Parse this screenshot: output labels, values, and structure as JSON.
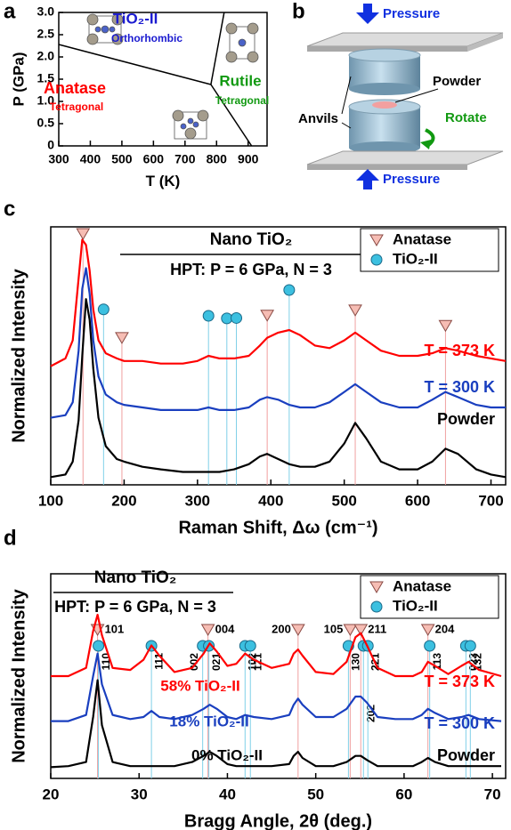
{
  "panel_labels": [
    "a",
    "b",
    "c",
    "d"
  ],
  "chart_data": [
    {
      "type": "phase",
      "xlabel": "T (K)",
      "ylabel": "P (GPa)",
      "xlim": [
        300,
        960
      ],
      "xticks": [
        300,
        400,
        500,
        600,
        700,
        800,
        900
      ],
      "ylim": [
        0,
        3
      ],
      "yticks": [
        0,
        0.5,
        {
          "value": 1,
          "label": "1.0"
        },
        1.5,
        {
          "value": 2,
          "label": "2.0"
        },
        2.5,
        {
          "value": 3,
          "label": "3.0"
        }
      ],
      "color": "#000000",
      "series": [
        {
          "x": [
            300,
            782
          ],
          "values": [
            2.28,
            1.38
          ]
        },
        {
          "x": [
            782,
            824
          ],
          "values": [
            1.38,
            3.0
          ]
        },
        {
          "x": [
            782,
            911
          ],
          "values": [
            1.38,
            0
          ]
        }
      ],
      "annotations": [
        {
          "text": "TiO₂-II",
          "color": "#1a1ad0"
        },
        {
          "text": "Orthorhombic",
          "color": "#1a1ad0"
        },
        {
          "text": "Anatase",
          "color": "#ff0000"
        },
        {
          "text": "Tetragonal",
          "color": "#ff0000"
        },
        {
          "text": "Rutile",
          "color": "#119911"
        },
        {
          "text": "Tetragonal",
          "color": "#119911"
        }
      ]
    },
    {
      "type": "line",
      "title": "Nano TiO₂",
      "subtitle": "HPT: P = 6 GPa, N = 3",
      "xlabel": "Raman Shift, Δω (cm⁻¹)",
      "ylabel": "Normalized Intensity",
      "xlim": [
        100,
        720
      ],
      "xticks": [
        100,
        200,
        300,
        400,
        500,
        600,
        700
      ],
      "ylim": [
        0,
        10
      ],
      "legend": "upper right",
      "x": [
        100,
        120,
        130,
        138,
        143,
        148,
        153,
        158,
        165,
        175,
        190,
        200,
        225,
        250,
        280,
        300,
        315,
        330,
        350,
        370,
        385,
        395,
        410,
        425,
        440,
        460,
        480,
        500,
        515,
        530,
        550,
        575,
        600,
        620,
        638,
        655,
        680,
        700,
        720
      ],
      "series": [
        {
          "name": "T = 373 K",
          "color": "#ff0000",
          "values": [
            4.6,
            4.9,
            5.6,
            8.0,
            9.5,
            9.3,
            8.3,
            6.8,
            5.6,
            5.1,
            4.9,
            4.8,
            4.8,
            4.7,
            4.7,
            4.8,
            5.0,
            4.9,
            4.9,
            5.0,
            5.4,
            5.7,
            5.9,
            6.0,
            5.8,
            5.4,
            5.3,
            5.6,
            5.9,
            5.6,
            5.2,
            5.0,
            5.0,
            5.1,
            5.3,
            5.2,
            5.0,
            4.9,
            4.8
          ]
        },
        {
          "name": "T = 300 K",
          "color": "#1a3fbf",
          "values": [
            2.6,
            2.7,
            3.2,
            5.2,
            7.6,
            8.4,
            7.4,
            5.6,
            4.2,
            3.5,
            3.2,
            3.1,
            3.0,
            2.9,
            2.9,
            2.9,
            3.0,
            2.9,
            2.9,
            3.0,
            3.3,
            3.4,
            3.3,
            3.1,
            3.0,
            3.0,
            3.2,
            3.6,
            3.9,
            3.6,
            3.2,
            3.0,
            3.0,
            3.3,
            3.6,
            3.4,
            3.1,
            3.0,
            3.0
          ]
        },
        {
          "name": "Powder",
          "color": "#000000",
          "values": [
            0.3,
            0.4,
            0.9,
            2.5,
            5.0,
            7.2,
            6.4,
            4.5,
            2.6,
            1.5,
            1.0,
            0.9,
            0.7,
            0.6,
            0.5,
            0.5,
            0.5,
            0.5,
            0.6,
            0.8,
            1.1,
            1.2,
            1.0,
            0.8,
            0.7,
            0.7,
            0.9,
            1.6,
            2.4,
            1.8,
            0.9,
            0.6,
            0.6,
            0.9,
            1.4,
            1.2,
            0.6,
            0.4,
            0.3
          ]
        }
      ],
      "markers": [
        {
          "name": "Anatase",
          "shape": "triangle",
          "color": "#f6bdb4",
          "line_color": "#f0a0a0",
          "x": [
            144,
            197,
            395,
            515,
            638
          ]
        },
        {
          "name": "TiO₂-II",
          "shape": "circle",
          "color": "#3cc0e0",
          "line_color": "#80d0e8",
          "x": [
            172,
            315,
            340,
            353,
            425
          ]
        }
      ]
    },
    {
      "type": "line",
      "title": "Nano TiO₂",
      "subtitle": "HPT: P = 6 GPa, N = 3",
      "xlabel": "Bragg Angle, 2θ (deg.)",
      "ylabel": "Normalized Intensity",
      "xlim": [
        20,
        71.5
      ],
      "xticks": [
        20,
        30,
        40,
        50,
        60,
        70
      ],
      "ylim": [
        0,
        10
      ],
      "legend": "upper right",
      "x": [
        20,
        22,
        24,
        24.8,
        25.3,
        25.8,
        27,
        29,
        30.5,
        31.4,
        32.3,
        34,
        36,
        37.3,
        38,
        38.8,
        40,
        41,
        42,
        43,
        45,
        47,
        47.5,
        48,
        48.5,
        50,
        52,
        53.5,
        54.5,
        55.1,
        55.8,
        57,
        59,
        61,
        62,
        62.7,
        63.5,
        65,
        66.5,
        67.3,
        68.5,
        71
      ],
      "series": [
        {
          "name": "T = 373 K",
          "annotation": "58% TiO₂-II",
          "color": "#ff0000",
          "values": [
            5.0,
            5.0,
            5.4,
            7.2,
            8.0,
            7.0,
            5.4,
            5.3,
            5.8,
            6.5,
            6.0,
            5.2,
            5.4,
            6.1,
            6.6,
            6.2,
            5.5,
            5.6,
            6.1,
            5.8,
            5.4,
            5.6,
            6.1,
            6.3,
            6.0,
            5.2,
            5.1,
            5.7,
            6.9,
            7.1,
            6.5,
            5.4,
            5.0,
            5.0,
            5.2,
            5.7,
            5.5,
            5.1,
            5.5,
            5.7,
            5.3,
            5.0
          ]
        },
        {
          "name": "T = 300 K",
          "annotation": "18% TiO₂-II",
          "color": "#1a3fbf",
          "values": [
            2.8,
            2.8,
            3.1,
            5.0,
            6.1,
            4.6,
            3.1,
            2.9,
            3.0,
            3.3,
            3.0,
            2.9,
            3.1,
            3.4,
            3.6,
            3.4,
            3.0,
            2.9,
            3.1,
            3.0,
            2.9,
            3.1,
            3.6,
            3.9,
            3.6,
            3.0,
            3.0,
            3.4,
            4.0,
            4.0,
            3.7,
            3.0,
            2.9,
            2.9,
            3.1,
            3.4,
            3.2,
            2.9,
            3.0,
            3.1,
            2.9,
            2.8
          ]
        },
        {
          "name": "Powder",
          "annotation": "0% TiO₂-II",
          "color": "#000000",
          "values": [
            0.55,
            0.6,
            0.8,
            3.0,
            4.8,
            2.6,
            0.8,
            0.6,
            0.6,
            0.6,
            0.6,
            0.6,
            0.8,
            1.1,
            1.3,
            1.1,
            0.7,
            0.6,
            0.6,
            0.6,
            0.6,
            0.7,
            1.1,
            1.3,
            1.0,
            0.6,
            0.6,
            0.8,
            1.1,
            1.1,
            0.9,
            0.6,
            0.6,
            0.6,
            0.8,
            1.0,
            0.8,
            0.6,
            0.6,
            0.6,
            0.6,
            0.6
          ]
        }
      ],
      "markers": [
        {
          "name": "Anatase",
          "shape": "triangle",
          "color": "#f6bdb4",
          "line_color": "#f0a0a0",
          "x": [
            25.3,
            37.8,
            48.0,
            53.9,
            55.1,
            62.7
          ],
          "labels": [
            "101",
            "004",
            "200",
            "105",
            "211",
            "204"
          ]
        },
        {
          "name": "TiO₂-II",
          "shape": "circle",
          "color": "#3cc0e0",
          "line_color": "#80d0e8",
          "x": [
            25.4,
            31.4,
            37.2,
            37.9,
            42.0,
            42.6,
            53.7,
            55.4,
            55.9,
            62.9,
            67.0,
            67.5
          ],
          "labels": [
            "110",
            "111",
            "002",
            "021",
            "102",
            "121",
            "130",
            "202",
            "221",
            "113",
            "023",
            "132"
          ]
        }
      ]
    }
  ],
  "diagram": {
    "pressure_top": "Pressure",
    "pressure_bottom": "Pressure",
    "anvils": "Anvils",
    "powder": "Powder",
    "rotate": "Rotate"
  }
}
